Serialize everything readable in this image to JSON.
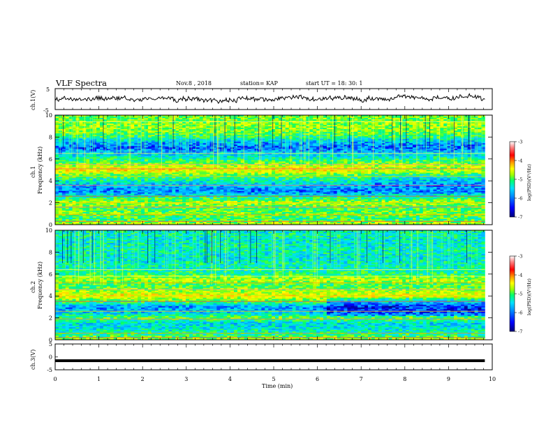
{
  "header": {
    "title": "VLF Spectra",
    "date": "Nov.8 , 2018",
    "station": "station= KAP",
    "start": "start UT = 18: 30: 1"
  },
  "colors": {
    "colormap": [
      "#00007a",
      "#0000ff",
      "#0090ff",
      "#00e0ff",
      "#00ff70",
      "#a0ff00",
      "#ffff00",
      "#ffa000",
      "#ff0000",
      "#ff8080",
      "#ffffff"
    ]
  },
  "chart_data": [
    {
      "type": "line",
      "panel": "ch1-waveform",
      "ylabel": "ch.1(V)",
      "ylim": [
        -5,
        5
      ],
      "yticks": [
        "5",
        "-5"
      ],
      "xlim": [
        0,
        10
      ],
      "x_end": 9.83,
      "baseline": 0.5,
      "amplitude": 1.8
    },
    {
      "type": "heatmap",
      "panel": "ch1-spectrogram",
      "ylabel": "ch.1",
      "ylabel2": "Frequency (kHz)",
      "ylim": [
        0,
        10
      ],
      "yticks": [
        "0",
        "2",
        "4",
        "6",
        "8",
        "10"
      ],
      "xlim": [
        0,
        10
      ],
      "x_end": 9.83,
      "colorbar": {
        "range": [
          -7,
          -3
        ],
        "ticks": [
          "-3",
          "-4",
          "-5",
          "-6",
          "-7"
        ],
        "label": "log(PSD)(V²/Hz)"
      },
      "bands_khz_log_psd": [
        [
          0,
          -4.8
        ],
        [
          0.5,
          -5.4
        ],
        [
          1.0,
          -5.1
        ],
        [
          1.5,
          -5.3
        ],
        [
          2.0,
          -4.9
        ],
        [
          2.5,
          -5.5
        ],
        [
          3.0,
          -6.2
        ],
        [
          3.5,
          -6.0
        ],
        [
          4.0,
          -5.6
        ],
        [
          4.5,
          -5.2
        ],
        [
          5.0,
          -4.5
        ],
        [
          5.5,
          -5.0
        ],
        [
          6.0,
          -5.5
        ],
        [
          6.5,
          -5.9
        ],
        [
          7.0,
          -6.3
        ],
        [
          7.5,
          -6.0
        ],
        [
          8.0,
          -5.4
        ],
        [
          8.5,
          -5.1
        ],
        [
          9.0,
          -5.0
        ],
        [
          9.5,
          -5.1
        ]
      ]
    },
    {
      "type": "heatmap",
      "panel": "ch2-spectrogram",
      "ylabel": "ch.2",
      "ylabel2": "Frequency (kHz)",
      "ylim": [
        0,
        10
      ],
      "yticks": [
        "0",
        "2",
        "4",
        "6",
        "8",
        "10"
      ],
      "xlim": [
        0,
        10
      ],
      "x_end": 9.83,
      "colorbar": {
        "range": [
          -7,
          -3
        ],
        "ticks": [
          "-3",
          "-4",
          "-5",
          "-6",
          "-7"
        ],
        "label": "log(PSD)(V²/Hz)"
      },
      "bands_khz_log_psd": [
        [
          0,
          -4.9
        ],
        [
          0.5,
          -5.5
        ],
        [
          1.0,
          -5.7
        ],
        [
          1.5,
          -5.8
        ],
        [
          2.0,
          -5.2
        ],
        [
          2.5,
          -5.9
        ],
        [
          3.0,
          -6.1
        ],
        [
          3.5,
          -5.3
        ],
        [
          4.0,
          -4.6
        ],
        [
          4.5,
          -5.0
        ],
        [
          5.0,
          -5.3
        ],
        [
          5.5,
          -4.9
        ],
        [
          6.0,
          -5.4
        ],
        [
          6.5,
          -5.6
        ],
        [
          7.0,
          -5.6
        ],
        [
          7.5,
          -5.7
        ],
        [
          8.0,
          -5.6
        ],
        [
          8.5,
          -5.6
        ],
        [
          9.0,
          -5.7
        ],
        [
          9.5,
          -5.6
        ]
      ]
    },
    {
      "type": "line",
      "panel": "ch3-waveform",
      "ylabel": "ch.3(V)",
      "ylim": [
        -5,
        5
      ],
      "yticks": [
        "5",
        "0",
        "-5"
      ],
      "xlim": [
        0,
        10
      ],
      "x_end": 9.83,
      "value": -1.5,
      "xlabel": "Time (min)",
      "xticks": [
        "0",
        "1",
        "2",
        "3",
        "4",
        "5",
        "6",
        "7",
        "8",
        "9",
        "10"
      ]
    }
  ]
}
